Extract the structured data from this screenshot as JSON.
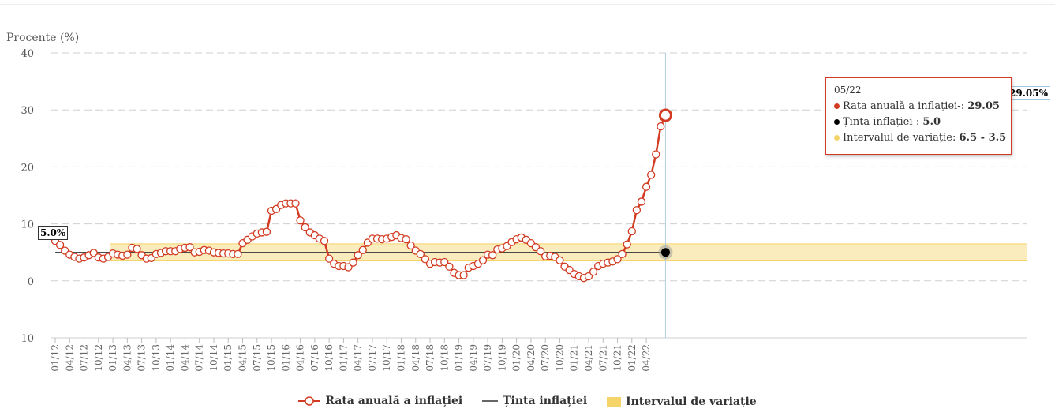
{
  "chart_data": {
    "type": "line",
    "ylabel": "Procente (%)",
    "ylim": [
      -10,
      40
    ],
    "yticks": [
      -10,
      0,
      10,
      20,
      30,
      40
    ],
    "grid": true,
    "x_tick_labels": [
      "01/12",
      "04/12",
      "07/12",
      "10/12",
      "01/13",
      "04/13",
      "07/13",
      "10/13",
      "01/14",
      "04/14",
      "07/14",
      "10/14",
      "01/15",
      "04/15",
      "07/15",
      "10/15",
      "01/16",
      "04/16",
      "07/16",
      "10/16",
      "01/17",
      "04/17",
      "07/17",
      "10/17",
      "01/18",
      "04/18",
      "07/18",
      "10/18",
      "01/19",
      "04/19",
      "07/19",
      "10/19",
      "01/20",
      "04/20",
      "07/20",
      "10/20",
      "01/21",
      "04/21",
      "07/21",
      "10/21",
      "01/22",
      "04/22"
    ],
    "start_month": "01/12",
    "series": [
      {
        "name": "Rata anuală a inflației",
        "color": "#d23b22",
        "values": [
          7.0,
          6.3,
          5.3,
          4.6,
          4.2,
          3.9,
          4.1,
          4.5,
          4.9,
          4.1,
          3.9,
          4.2,
          4.8,
          4.6,
          4.4,
          4.6,
          5.8,
          5.6,
          4.5,
          3.9,
          4.0,
          4.7,
          4.9,
          5.2,
          5.2,
          5.2,
          5.6,
          5.8,
          5.9,
          5.0,
          5.1,
          5.4,
          5.3,
          5.0,
          4.9,
          4.8,
          4.8,
          4.7,
          4.7,
          6.6,
          7.2,
          7.8,
          8.3,
          8.5,
          8.6,
          12.3,
          12.6,
          13.3,
          13.6,
          13.6,
          13.6,
          10.6,
          9.4,
          8.5,
          8.0,
          7.4,
          7.0,
          3.9,
          3.0,
          2.6,
          2.6,
          2.4,
          3.2,
          4.5,
          5.4,
          6.7,
          7.4,
          7.4,
          7.3,
          7.4,
          7.7,
          8.0,
          7.5,
          7.3,
          6.2,
          5.3,
          4.7,
          3.8,
          3.0,
          3.3,
          3.2,
          3.3,
          2.5,
          1.4,
          1.0,
          1.0,
          2.3,
          2.6,
          3.0,
          3.6,
          4.6,
          4.5,
          5.5,
          5.7,
          6.1,
          6.8,
          7.3,
          7.6,
          7.2,
          6.6,
          5.9,
          5.2,
          4.3,
          4.4,
          4.2,
          3.6,
          2.5,
          1.9,
          1.2,
          0.8,
          0.5,
          0.8,
          1.6,
          2.6,
          3.0,
          3.2,
          3.4,
          3.8,
          4.7,
          6.4,
          8.7,
          12.4,
          13.9,
          16.5,
          18.6,
          22.2,
          27.1,
          29.05
        ]
      },
      {
        "name": "Ținta inflației",
        "color": "#333333",
        "value": 5.0
      },
      {
        "name": "Intervalul de variație",
        "color": "#f5d46a",
        "range": [
          3.5,
          6.5
        ]
      }
    ],
    "annotations": {
      "start_label": "5.0%",
      "end_label": "29.05%"
    }
  },
  "tooltip": {
    "title": "05/22",
    "row1_label": "Rata anuală a inflației-: ",
    "row1_value": "29.05",
    "row2_label": "Ținta inflației-: ",
    "row2_value": "5.0",
    "row3_label": "Intervalul de variație: ",
    "row3_value": "6.5 - 3.5"
  },
  "legend": {
    "item1": "Rata anuală a inflației",
    "item2": "Ținta inflației",
    "item3": "Intervalul de variație"
  }
}
